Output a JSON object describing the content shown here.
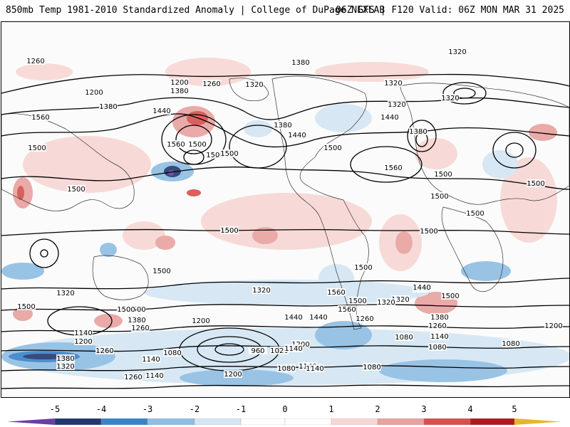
{
  "header": {
    "left": "850mb Temp 1981-2010 Standardized Anomaly | College of DuPage NEXLAB",
    "right": "06Z GFS | F120 Valid: 06Z MON MAR 31 2025"
  },
  "map": {
    "contour_labels": [
      "1260",
      "1380",
      "1200",
      "1200",
      "1380",
      "1260",
      "1320",
      "1320",
      "1380",
      "1320",
      "1320",
      "1320",
      "1560",
      "1440",
      "1500",
      "1560",
      "1500",
      "1500",
      "1380",
      "1440",
      "1500",
      "1440",
      "1380",
      "1560",
      "1500",
      "1500",
      "1500",
      "1500",
      "1500",
      "1500",
      "1500",
      "1500",
      "1500",
      "1500",
      "1560",
      "1440",
      "1440",
      "1320",
      "1500",
      "1500",
      "1380",
      "1260",
      "1140",
      "1200",
      "1260",
      "1380",
      "1320",
      "1140",
      "1080",
      "1200",
      "1440",
      "1380",
      "1260",
      "1140",
      "1080",
      "1200",
      "1140",
      "1200",
      "1080",
      "1080",
      "1140",
      "960",
      "1020",
      "1140",
      "1200",
      "1080",
      "1320",
      "1260",
      "1320",
      "1440",
      "1500",
      "1500",
      "1320",
      "1560",
      "1500",
      "1140",
      "1080",
      "1260"
    ],
    "colors": {
      "neg5": "#6a3fa0",
      "neg4": "#22376e",
      "neg3": "#3a83c9",
      "neg2": "#8fbde3",
      "neg1": "#d4e6f4",
      "zero": "#ffffff",
      "pos1": "#f7d7d4",
      "pos2": "#e8a2a0",
      "pos3": "#d6504d",
      "pos4": "#ad1a1f",
      "pos5": "#6e0c0f",
      "pos_end": "#e7b52a"
    }
  },
  "colorbar": {
    "ticks": [
      "-5",
      "-4",
      "-3",
      "-2",
      "-1",
      "0",
      "1",
      "2",
      "3",
      "4",
      "5"
    ]
  }
}
